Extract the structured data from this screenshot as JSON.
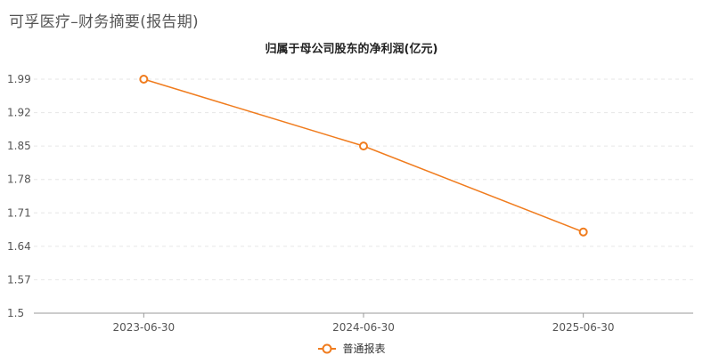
{
  "page": {
    "title": "可孚医疗–财务摘要(报告期)"
  },
  "chart_data": {
    "type": "line",
    "title": "归属于母公司股东的净利润(亿元)",
    "categories": [
      "2023-06-30",
      "2024-06-30",
      "2025-06-30"
    ],
    "series": [
      {
        "name": "普通报表",
        "values": [
          1.99,
          1.85,
          1.67
        ],
        "color": "#f07c1e"
      }
    ],
    "ylim": [
      1.5,
      1.99
    ],
    "yticks": [
      "1.99",
      "1.92",
      "1.85",
      "1.78",
      "1.71",
      "1.64",
      "1.57",
      "1.5"
    ],
    "grid": true,
    "legend": "bottom-center"
  }
}
